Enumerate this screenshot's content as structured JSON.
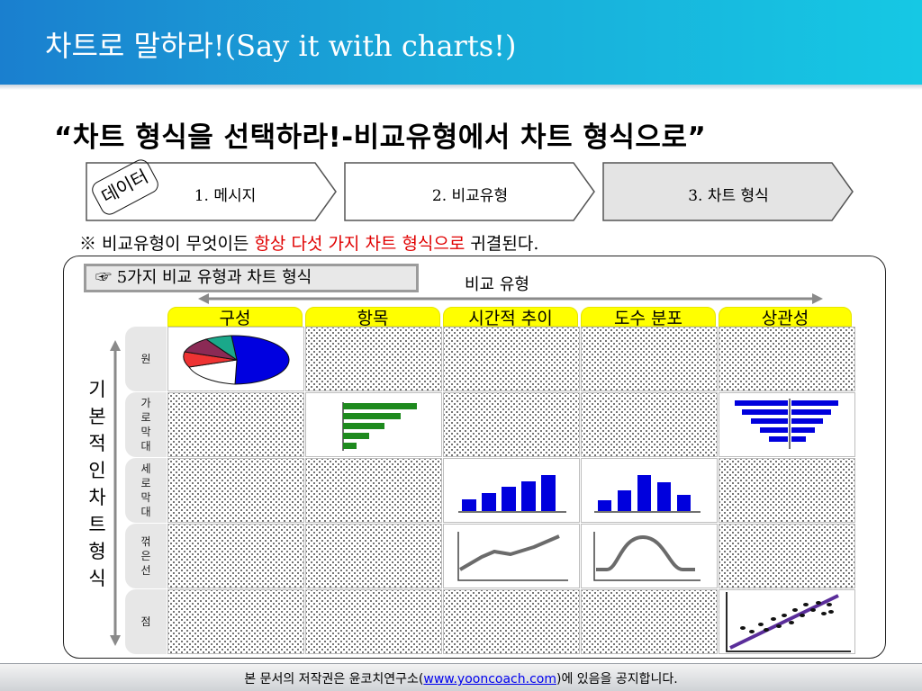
{
  "header": {
    "title": "차트로 말하라!(Say it with charts!)"
  },
  "subtitle": "“차트 형식을 선택하라!-비교유형에서 차트 형식으로”",
  "stamp": "데이터",
  "steps": [
    "1. 메시지",
    "2. 비교유형",
    "3. 차트 형식"
  ],
  "note": {
    "prefix": "※ 비교유형이 무엇이든 ",
    "highlight": "항상 다섯 가지 차트 형식으로",
    "suffix": " 귀결된다."
  },
  "legend": "☞ 5가지 비교 유형과 차트 형식",
  "axis": {
    "horizontal": "비교 유형",
    "vertical": [
      "기",
      "본",
      "적",
      "인",
      "차",
      "트",
      "형",
      "식"
    ]
  },
  "columns": [
    "구성",
    "항목",
    "시간적 추이",
    "도수 분포",
    "상관성"
  ],
  "rows": [
    {
      "label": [
        "원"
      ]
    },
    {
      "label": [
        "가",
        "로",
        "막",
        "대"
      ]
    },
    {
      "label": [
        "세",
        "로",
        "막",
        "대"
      ]
    },
    {
      "label": [
        "꺾",
        "은",
        "선"
      ]
    },
    {
      "label": [
        "점"
      ]
    }
  ],
  "colors": {
    "column_header": "#ffff00",
    "bars_blue": "#0000dd",
    "bars_green": "#1e8a1e",
    "line_gray": "#6b6b6b",
    "trend_purple": "#5a2d9a",
    "highlight": "#e00000"
  },
  "footer": {
    "prefix": "본 문서의 저작권은 윤코치연구소(",
    "link": "www.yooncoach.com",
    "suffix": ")에 있음을 공지합니다."
  }
}
